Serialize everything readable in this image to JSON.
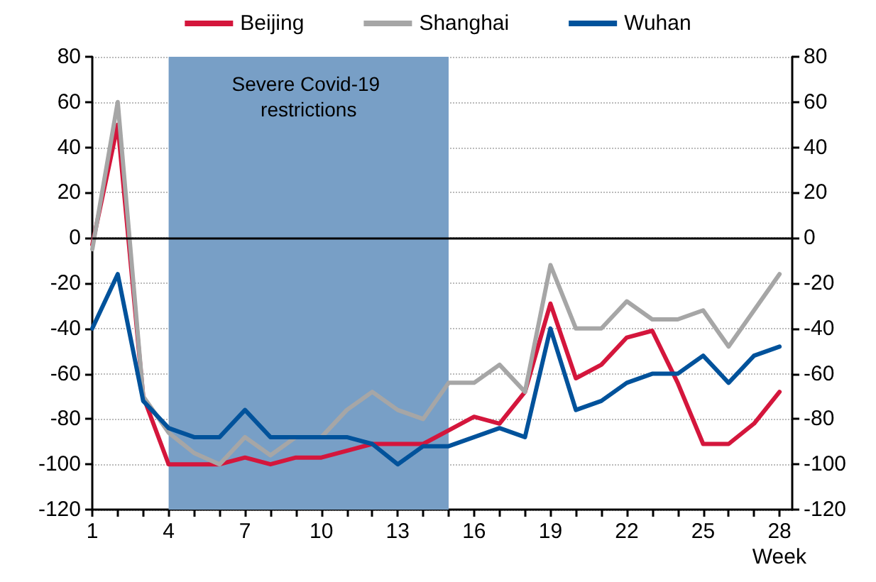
{
  "chart_data": {
    "type": "line",
    "xlabel": "Week",
    "x": [
      1,
      2,
      3,
      4,
      5,
      6,
      7,
      8,
      9,
      10,
      11,
      12,
      13,
      14,
      15,
      16,
      17,
      18,
      19,
      20,
      21,
      22,
      23,
      24,
      25,
      26,
      27,
      28
    ],
    "series": [
      {
        "name": "Beijing",
        "color": "#d4163c",
        "values": [
          -3,
          50,
          -70,
          -100,
          -100,
          -100,
          -97,
          -100,
          -97,
          -97,
          -94,
          -91,
          -91,
          -91,
          -85,
          -79,
          -82,
          -68,
          -29,
          -62,
          -56,
          -44,
          -41,
          -64,
          -91,
          -91,
          -82,
          -68
        ]
      },
      {
        "name": "Shanghai",
        "color": "#a6a6a6",
        "values": [
          -5,
          60,
          -70,
          -86,
          -95,
          -100,
          -88,
          -96,
          -88,
          -88,
          -76,
          -68,
          -76,
          -80,
          -64,
          -64,
          -56,
          -68,
          -12,
          -40,
          -40,
          -28,
          -36,
          -36,
          -32,
          -48,
          -32,
          -16
        ]
      },
      {
        "name": "Wuhan",
        "color": "#00529b",
        "values": [
          -40,
          -16,
          -72,
          -84,
          -88,
          -88,
          -76,
          -88,
          -88,
          -88,
          -88,
          -91,
          -100,
          -92,
          -92,
          -88,
          -84,
          -88,
          -40,
          -76,
          -72,
          -64,
          -60,
          -60,
          -52,
          -64,
          -52,
          -48
        ]
      }
    ],
    "xlim": [
      1,
      28.5
    ],
    "xticks": [
      1,
      {
        "value": 2,
        "label": null
      },
      {
        "value": 3,
        "label": null
      },
      4,
      {
        "value": 5,
        "label": null
      },
      {
        "value": 6,
        "label": null
      },
      7,
      {
        "value": 8,
        "label": null
      },
      {
        "value": 9,
        "label": null
      },
      10,
      {
        "value": 11,
        "label": null
      },
      {
        "value": 12,
        "label": null
      },
      13,
      {
        "value": 14,
        "label": null
      },
      {
        "value": 15,
        "label": null
      },
      16,
      {
        "value": 17,
        "label": null
      },
      {
        "value": 18,
        "label": null
      },
      19,
      {
        "value": 20,
        "label": null
      },
      {
        "value": 21,
        "label": null
      },
      22,
      {
        "value": 23,
        "label": null
      },
      {
        "value": 24,
        "label": null
      },
      25,
      {
        "value": 26,
        "label": null
      },
      {
        "value": 27,
        "label": null
      },
      28
    ],
    "ylim": [
      -120,
      80
    ],
    "yticks": [
      -120,
      -100,
      -80,
      -60,
      -40,
      -20,
      0,
      20,
      40,
      60,
      80
    ],
    "y2lim": [
      -120,
      80
    ],
    "y2ticks": [
      -120,
      -100,
      -80,
      -60,
      -40,
      -20,
      0,
      20,
      40,
      60,
      80
    ],
    "ref_lines": [
      {
        "axis": "y",
        "value": 0,
        "color": "#000000"
      }
    ],
    "bands": [
      {
        "axis": "x",
        "from": 4,
        "to": 15,
        "label": "Severe Covid-19 restrictions",
        "color": "#789fc6"
      }
    ],
    "grid": "y",
    "legend": "top",
    "marker": "none",
    "line_style": "solid"
  }
}
